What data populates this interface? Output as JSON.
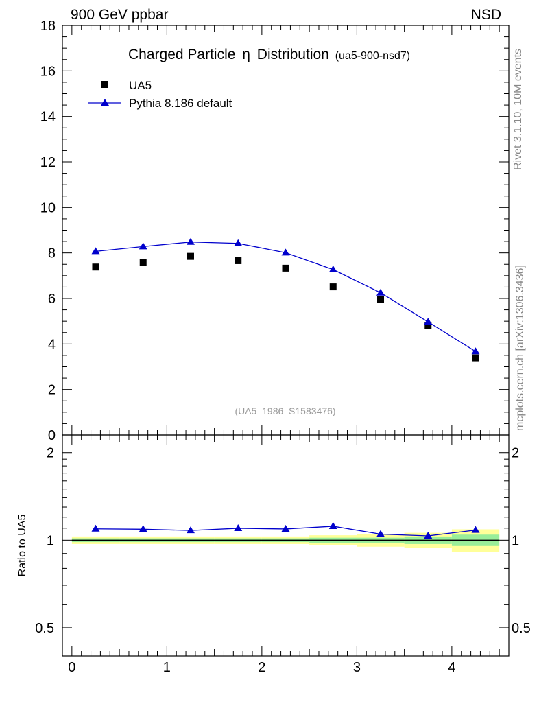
{
  "header": {
    "left": "900 GeV ppbar",
    "right": "NSD"
  },
  "side_text": {
    "top": "Rivet 3.1.10,  10M events",
    "bottom": "mcplots.cern.ch [arXiv:1306.3436]"
  },
  "colors": {
    "mc_line": "#0000cc",
    "data_marker": "#000000",
    "band_green": "#99ee99",
    "band_yellow": "#ffff99",
    "watermark": "#999999"
  },
  "chart_data": [
    {
      "type": "scatter",
      "title": "Charged Particle",
      "title_symbol": "η",
      "title_suffix": "Distribution",
      "title_tag": "(ua5-900-nsd7)",
      "watermark": "(UA5_1986_S1583476)",
      "legend_position": "top-left",
      "xlim": [
        -0.1,
        4.6
      ],
      "ylim": [
        0,
        18
      ],
      "y_ticks": [
        0,
        2,
        4,
        6,
        8,
        10,
        12,
        14,
        16,
        18
      ],
      "y_tick_labels": [
        "0",
        "2",
        "4",
        "6",
        "8",
        "10",
        "12",
        "14",
        "16",
        "18"
      ],
      "series": [
        {
          "name": "UA5",
          "style": "marker",
          "x": [
            0.25,
            0.75,
            1.25,
            1.75,
            2.25,
            2.75,
            3.25,
            3.75,
            4.25
          ],
          "y": [
            7.38,
            7.59,
            7.85,
            7.66,
            7.33,
            6.51,
            5.96,
            4.8,
            3.39
          ]
        },
        {
          "name": "Pythia 8.186 default",
          "style": "line-triangle",
          "x": [
            0.25,
            0.75,
            1.25,
            1.75,
            2.25,
            2.75,
            3.25,
            3.75,
            4.25
          ],
          "y": [
            8.07,
            8.28,
            8.48,
            8.42,
            8.01,
            7.27,
            6.25,
            4.97,
            3.67
          ]
        }
      ]
    },
    {
      "type": "line",
      "ylabel": "Ratio to UA5",
      "scale": "log",
      "xlim": [
        -0.1,
        4.6
      ],
      "ylim": [
        0.4,
        2.3
      ],
      "x_ticks": [
        0,
        1,
        2,
        3,
        4
      ],
      "x_tick_labels": [
        "0",
        "1",
        "2",
        "3",
        "4"
      ],
      "y_ticks": [
        0.5,
        1,
        2
      ],
      "y_tick_labels": [
        "0.5",
        "1",
        "2"
      ],
      "bands": {
        "x_edges": [
          0,
          0.5,
          1,
          1.5,
          2,
          2.5,
          3,
          3.5,
          4,
          4.5
        ],
        "green": [
          0.015,
          0.015,
          0.015,
          0.015,
          0.015,
          0.02,
          0.02,
          0.03,
          0.045
        ],
        "yellow": [
          0.03,
          0.03,
          0.03,
          0.03,
          0.03,
          0.04,
          0.05,
          0.06,
          0.09
        ]
      },
      "series": [
        {
          "name": "Pythia 8.186 default",
          "x": [
            0.25,
            0.75,
            1.25,
            1.75,
            2.25,
            2.75,
            3.25,
            3.75,
            4.25
          ],
          "y": [
            1.094,
            1.091,
            1.08,
            1.099,
            1.093,
            1.117,
            1.049,
            1.035,
            1.083
          ]
        }
      ]
    }
  ]
}
